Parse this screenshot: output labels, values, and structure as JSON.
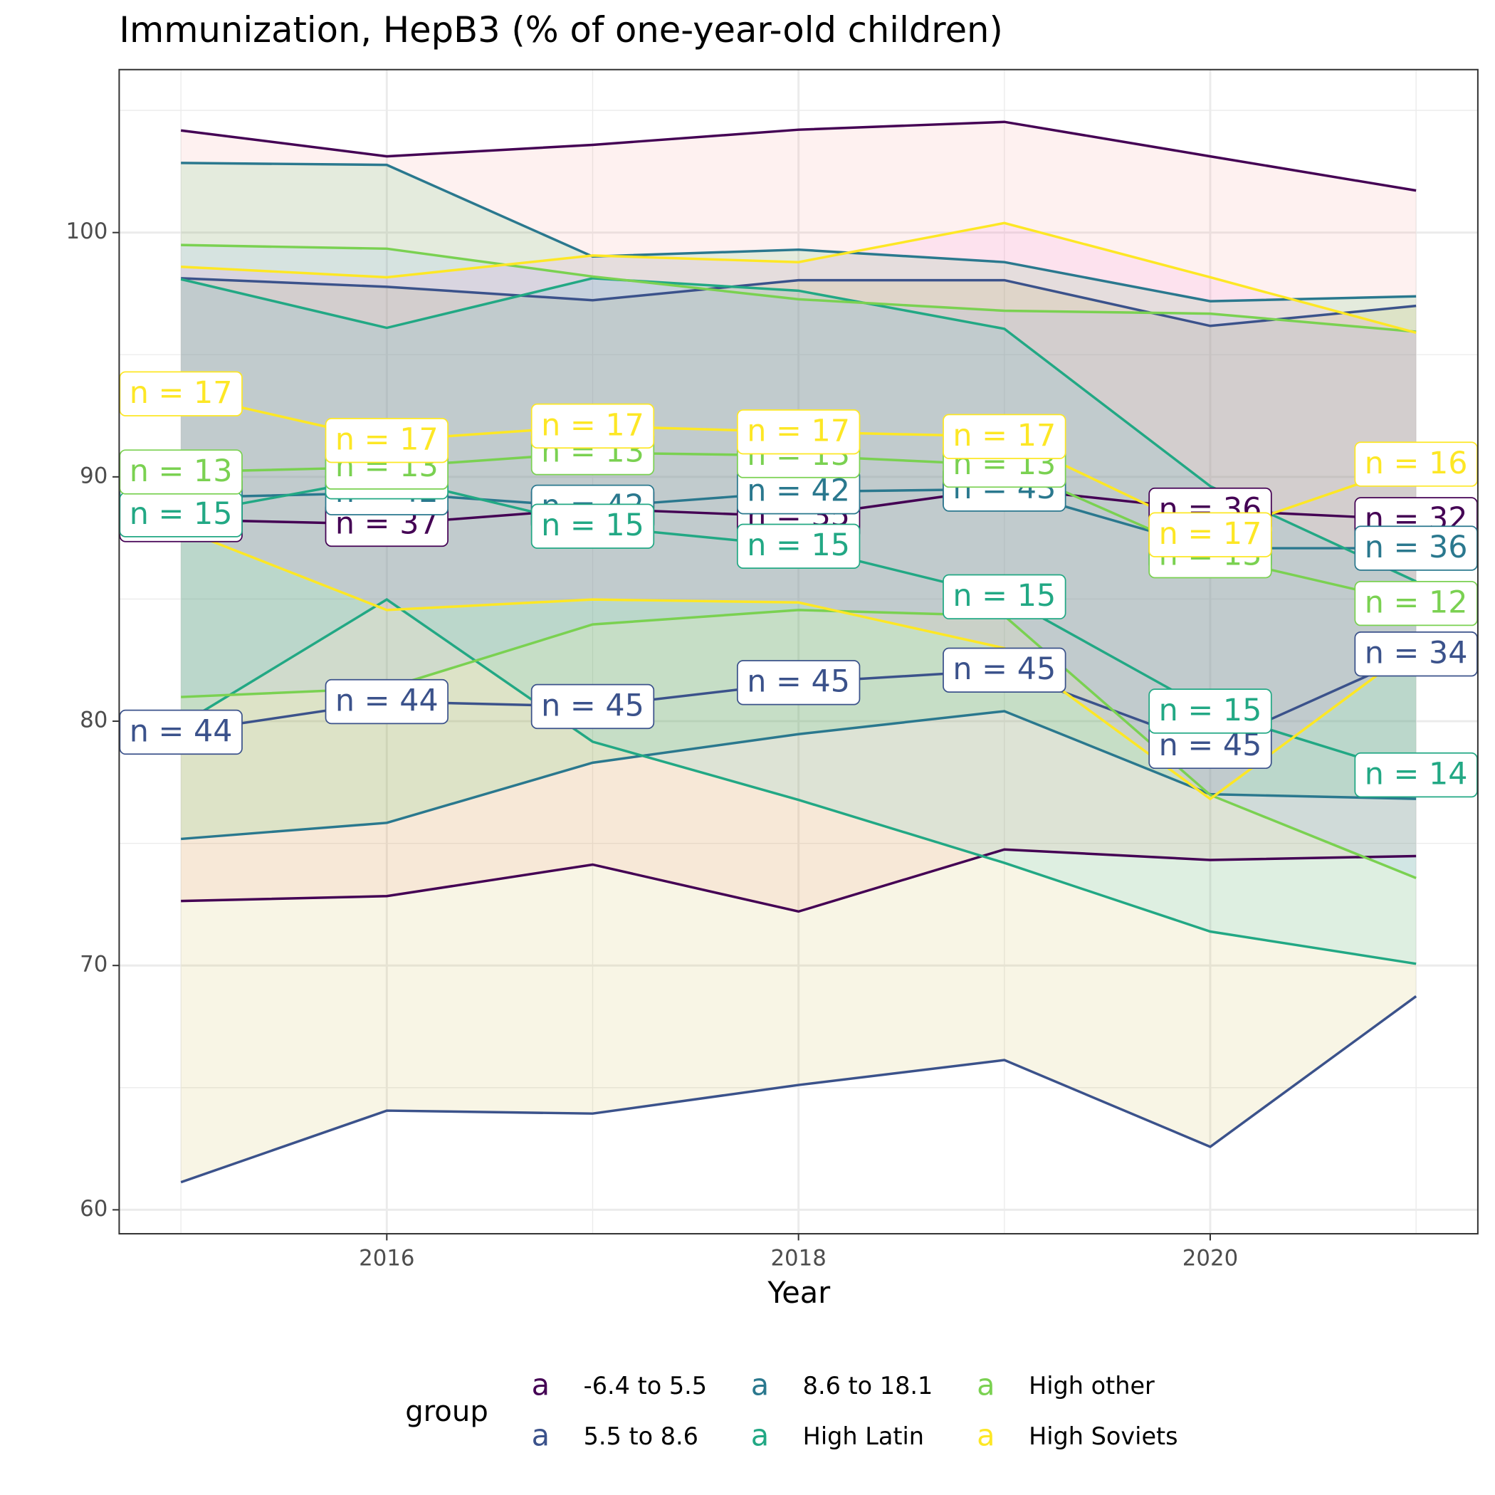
{
  "chart_data": {
    "type": "line",
    "title": "Immunization, HepB3 (% of one-year-old children)",
    "x_label": "Year",
    "legend_title": "group",
    "legend_key_text": "a",
    "x": [
      2015,
      2016,
      2017,
      2018,
      2019,
      2020,
      2021
    ],
    "xlim": [
      2014.7,
      2021.3
    ],
    "xticks": [
      2016,
      2018,
      2020
    ],
    "ylim": [
      59.02,
      106.67
    ],
    "yticks": [
      60,
      70,
      80,
      90,
      100
    ],
    "grid": true,
    "legend_position": "bottom",
    "series": [
      {
        "name": "-6.4 to 5.5",
        "color": "#440154",
        "fill": "#F8766D",
        "values": [
          88.25,
          88.06,
          88.7,
          88.37,
          89.54,
          88.64,
          88.25
        ],
        "upper": [
          104.18,
          103.12,
          103.59,
          104.21,
          104.53,
          103.12,
          101.72
        ],
        "lower": [
          72.64,
          72.84,
          74.13,
          72.21,
          74.75,
          74.32,
          74.48
        ],
        "labels": [
          "n = 37",
          "n = 37",
          "n = 35",
          "n = 35",
          "n = 35",
          "n = 36",
          "n = 32"
        ]
      },
      {
        "name": "5.5 to 8.6",
        "color": "#3b528b",
        "fill": "#B79F00",
        "values": [
          79.55,
          80.8,
          80.6,
          81.58,
          82.09,
          78.97,
          82.75
        ],
        "upper": [
          98.13,
          97.78,
          97.23,
          98.05,
          98.05,
          96.18,
          97.0
        ],
        "lower": [
          61.13,
          64.06,
          63.94,
          65.11,
          66.13,
          62.58,
          68.74
        ],
        "labels": [
          "n = 44",
          "n = 44",
          "n = 45",
          "n = 45",
          "n = 45",
          "n = 45",
          "n = 34"
        ]
      },
      {
        "name": "8.6 to 18.1",
        "color": "#2a788e",
        "fill": "#00BA38",
        "values": [
          89.15,
          89.35,
          88.76,
          89.39,
          89.5,
          87.08,
          87.08
        ],
        "upper": [
          102.85,
          102.77,
          99.02,
          99.3,
          98.79,
          97.19,
          97.39
        ],
        "lower": [
          75.18,
          75.84,
          78.3,
          79.47,
          80.41,
          77.01,
          76.82
        ],
        "labels": [
          "n = 42",
          "n = 42",
          "n = 42",
          "n = 42",
          "n = 43",
          "n = 42",
          "n = 36"
        ]
      },
      {
        "name": "High Latin",
        "color": "#22a884",
        "fill": "#00BFC4",
        "values": [
          88.45,
          90.0,
          87.98,
          87.16,
          85.09,
          80.41,
          77.8
        ],
        "upper": [
          98.09,
          96.1,
          98.13,
          97.62,
          96.06,
          89.62,
          85.72
        ],
        "lower": [
          79.86,
          84.98,
          79.16,
          76.78,
          74.2,
          71.39,
          70.07
        ],
        "labels": [
          "n = 15",
          "n = 15",
          "n = 15",
          "n = 15",
          "n = 15",
          "n = 15",
          "n = 14"
        ]
      },
      {
        "name": "High other",
        "color": "#7ad151",
        "fill": "#619CFF",
        "values": [
          90.2,
          90.4,
          90.99,
          90.87,
          90.48,
          86.77,
          84.82
        ],
        "upper": [
          99.49,
          99.34,
          98.2,
          97.27,
          96.8,
          96.68,
          95.94
        ],
        "lower": [
          80.99,
          81.35,
          83.96,
          84.55,
          84.31,
          76.98,
          73.58
        ],
        "labels": [
          "n = 13",
          "n = 13",
          "n = 13",
          "n = 13",
          "n = 13",
          "n = 13",
          "n = 12"
        ]
      },
      {
        "name": "High Soviets",
        "color": "#fde725",
        "fill": "#F564E3",
        "values": [
          93.4,
          91.49,
          92.08,
          91.84,
          91.65,
          87.63,
          90.52
        ],
        "upper": [
          98.6,
          98.17,
          99.06,
          98.79,
          100.39,
          98.17,
          95.9
        ],
        "lower": [
          87.86,
          84.55,
          84.98,
          84.86,
          82.99,
          76.82,
          83.06
        ],
        "labels": [
          "n = 17",
          "n = 17",
          "n = 17",
          "n = 17",
          "n = 17",
          "n = 17",
          "n = 16"
        ]
      }
    ]
  }
}
